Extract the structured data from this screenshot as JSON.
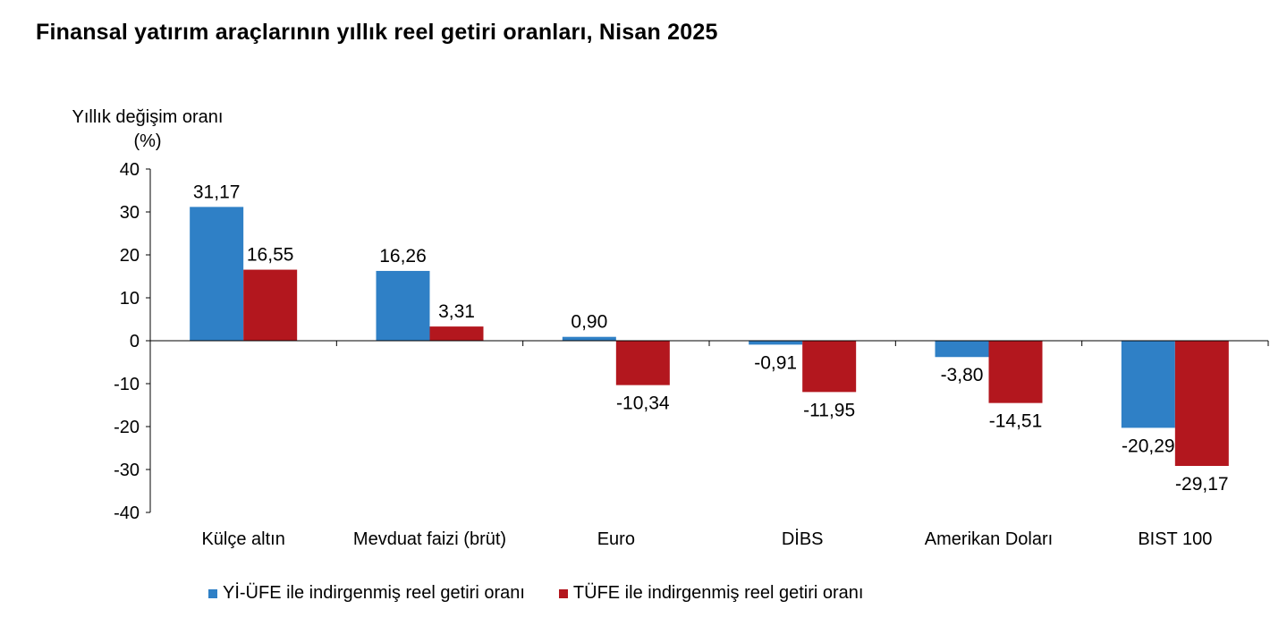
{
  "chart_data": {
    "type": "bar",
    "title": "Finansal yatırım araçlarının yıllık reel getiri oranları, Nisan 2025",
    "ylabel": "Yıllık değişim oranı (%)",
    "xlabel": "",
    "ylim": [
      -40,
      40
    ],
    "yticks": [
      40,
      30,
      20,
      10,
      0,
      -10,
      -20,
      -30,
      -40
    ],
    "ytick_labels": [
      "40",
      "30",
      "20",
      "10",
      "0",
      "-10",
      "-20",
      "-30",
      "-40"
    ],
    "categories": [
      "Külçe altın",
      "Mevduat faizi (brüt)",
      "Euro",
      "DİBS",
      "Amerikan Doları",
      "BIST 100"
    ],
    "series": [
      {
        "name": "Yİ-ÜFE ile indirgenmiş reel getiri oranı",
        "color": "#2f80c6",
        "values": [
          31.17,
          16.26,
          0.9,
          -0.91,
          -3.8,
          -20.29
        ],
        "labels": [
          "31,17",
          "16,26",
          "0,90",
          "-0,91",
          "-3,80",
          "-20,29"
        ]
      },
      {
        "name": "TÜFE ile indirgenmiş reel getiri oranı",
        "color": "#b3171e",
        "values": [
          16.55,
          3.31,
          -10.34,
          -11.95,
          -14.51,
          -29.17
        ],
        "labels": [
          "16,55",
          "3,31",
          "-10,34",
          "-11,95",
          "-14,51",
          "-29,17"
        ]
      }
    ],
    "legend": "bottom",
    "grid": false
  }
}
